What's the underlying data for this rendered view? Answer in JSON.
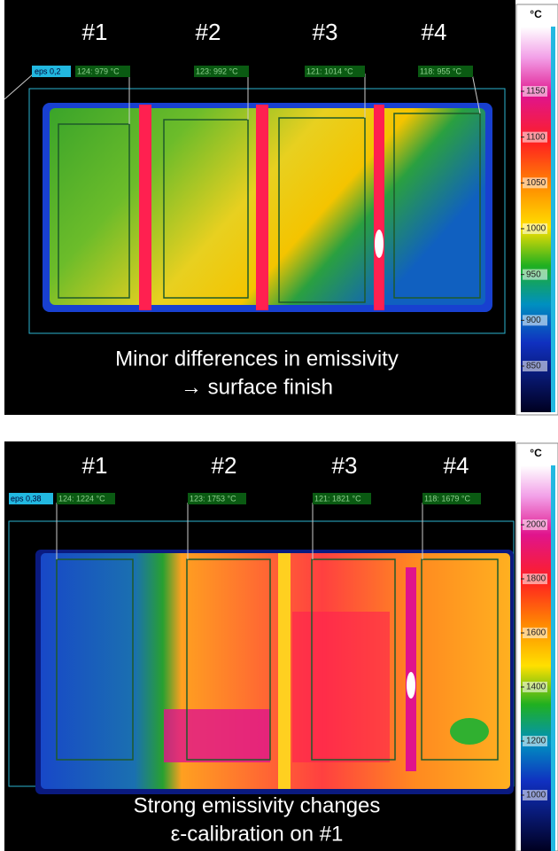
{
  "panels": [
    {
      "eps": "eps 0,2",
      "zones": [
        "#1",
        "#2",
        "#3",
        "#4"
      ],
      "readouts": [
        "124: 979 °C",
        "123: 992 °C",
        "121: 1014 °C",
        "118: 955 °C"
      ],
      "caption": [
        "Minor differences in emissivity",
        "→ surface finish"
      ],
      "scale": {
        "unit": "°C",
        "ticks": [
          1150,
          1100,
          1050,
          1000,
          950,
          900,
          850
        ]
      }
    },
    {
      "eps": "eps 0,38",
      "zones": [
        "#1",
        "#2",
        "#3",
        "#4"
      ],
      "readouts": [
        "124: 1224 °C",
        "123: 1753 °C",
        "121: 1821 °C",
        "118: 1679 °C"
      ],
      "caption": [
        "Strong emissivity changes",
        "ε-calibration on #1"
      ],
      "scale": {
        "unit": "°C",
        "ticks": [
          2000,
          1800,
          1600,
          1400,
          1200,
          1000
        ]
      }
    }
  ]
}
